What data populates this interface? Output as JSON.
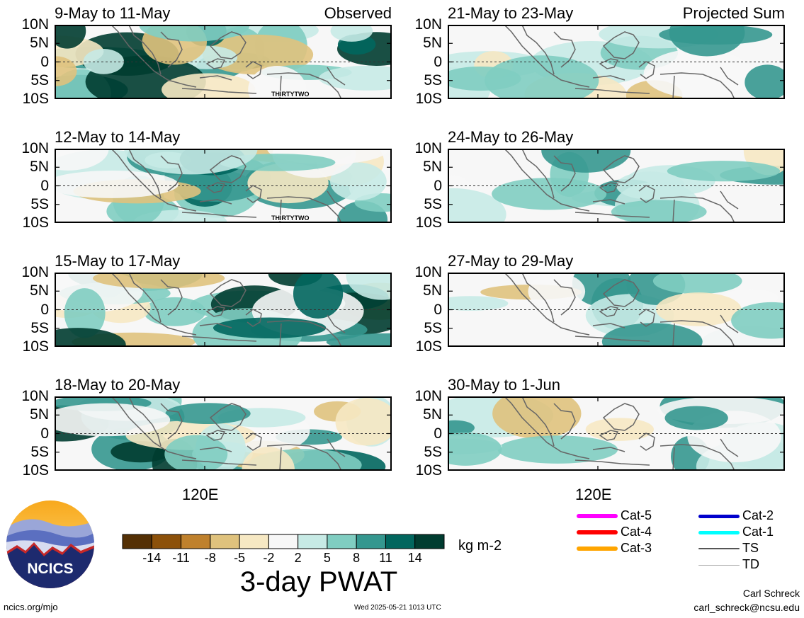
{
  "panels_left": [
    {
      "title": "9-May to 11-May",
      "corner_label": "Observed",
      "storm_label": "THIRTYTWO"
    },
    {
      "title": "12-May to 14-May",
      "corner_label": "",
      "storm_label": "THIRTYTWO"
    },
    {
      "title": "15-May to 17-May",
      "corner_label": "",
      "storm_label": ""
    },
    {
      "title": "18-May to 20-May",
      "corner_label": "",
      "storm_label": ""
    }
  ],
  "panels_right": [
    {
      "title": "21-May to 23-May",
      "corner_label": "Projected Sum"
    },
    {
      "title": "24-May to 26-May",
      "corner_label": ""
    },
    {
      "title": "27-May to 29-May",
      "corner_label": ""
    },
    {
      "title": "30-May to 1-Jun",
      "corner_label": ""
    }
  ],
  "lat_labels": [
    "10N",
    "5N",
    "0",
    "5S",
    "10S"
  ],
  "x_label": "120E",
  "colorbar": {
    "colors": [
      "#543005",
      "#8c510a",
      "#bf812d",
      "#dfc27d",
      "#f6e8c3",
      "#f7f7f7",
      "#f7f7f7",
      "#c7eae5",
      "#80cdc1",
      "#35978f",
      "#01665e",
      "#003c30"
    ],
    "ticks": [
      "-14",
      "-11",
      "-8",
      "-5",
      "-2",
      "2",
      "5",
      "8",
      "11",
      "14"
    ],
    "units": "kg m-2",
    "title": "3-day PWAT"
  },
  "legend": [
    {
      "label": "Cat-5",
      "color": "#ff00ff",
      "width": 6
    },
    {
      "label": "Cat-4",
      "color": "#ff0000",
      "width": 6
    },
    {
      "label": "Cat-3",
      "color": "#ffa500",
      "width": 6
    },
    {
      "label": "Cat-2",
      "color": "#0000cc",
      "width": 5
    },
    {
      "label": "Cat-1",
      "color": "#00ffff",
      "width": 5
    },
    {
      "label": "TS",
      "color": "#555555",
      "width": 2
    },
    {
      "label": "TD",
      "color": "#aaaaaa",
      "width": 1
    }
  ],
  "logo_text": "NCICS",
  "footer": {
    "site": "ncics.org/mjo",
    "timestamp": "Wed 2025-05-21 1013 UTC",
    "author": "Carl Schreck",
    "email": "carl_schreck@ncsu.edu"
  }
}
